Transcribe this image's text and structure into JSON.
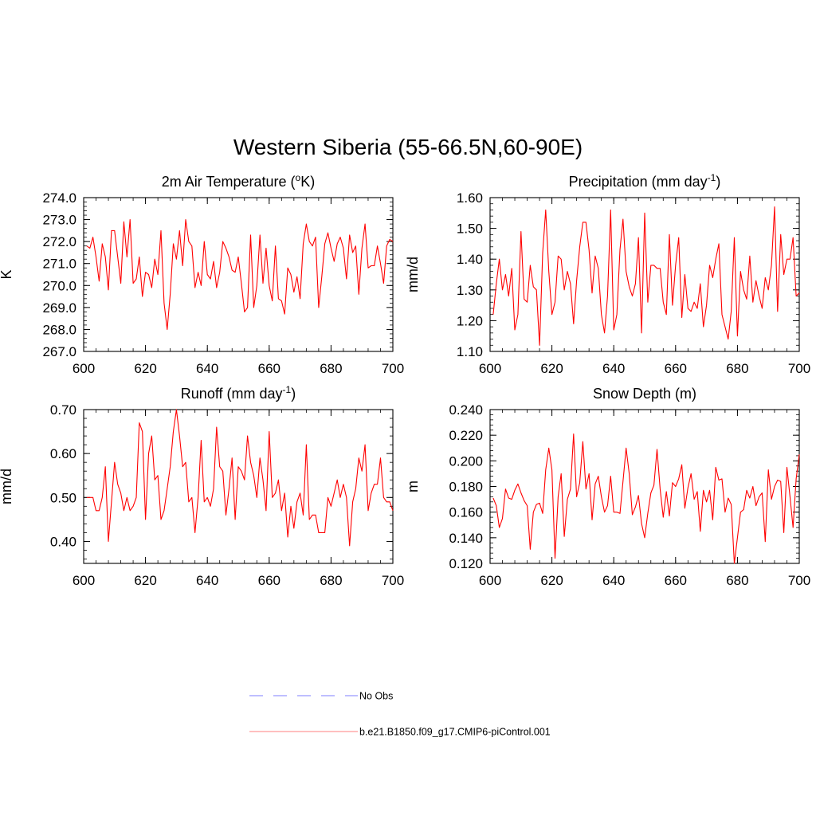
{
  "figure": {
    "title": "Western Siberia (55-66.5N,60-90E)"
  },
  "legend": {
    "placement": "bottom-center",
    "items": [
      {
        "label": "No Obs",
        "color": "#9999ff",
        "style": "dashed"
      },
      {
        "label": "b.e21.B1850.f09_g17.CMIP6-piControl.001",
        "color": "#ff0000",
        "style": "solid"
      }
    ]
  },
  "chart_data": [
    {
      "type": "line",
      "title": "2m Air Temperature (oK)",
      "title_parts": {
        "before": "2m Air Temperature (",
        "sup": "o",
        "after": "K)"
      },
      "ylabel": "K",
      "xlim": [
        600,
        700
      ],
      "ylim": [
        267,
        274
      ],
      "xticks": [
        600,
        620,
        640,
        660,
        680,
        700
      ],
      "yticks": [
        267,
        268,
        269,
        270,
        271,
        272,
        273,
        274
      ],
      "ytick_decimals": 1,
      "color": "#ff0000",
      "x_start": 601,
      "y": [
        271.8,
        271.7,
        272.2,
        271.3,
        270.2,
        271.9,
        271.3,
        269.8,
        272.5,
        272.5,
        271.3,
        270.1,
        272.9,
        271.3,
        273.0,
        270.1,
        270.3,
        271.3,
        269.5,
        270.6,
        270.5,
        269.9,
        271.2,
        270.5,
        272.5,
        269.2,
        268.0,
        269.6,
        271.9,
        271.2,
        272.5,
        270.9,
        273.0,
        272.0,
        271.8,
        269.9,
        270.6,
        270.0,
        272.0,
        270.5,
        270.3,
        271.1,
        269.9,
        270.6,
        272.0,
        271.7,
        271.3,
        270.7,
        270.6,
        271.3,
        270.1,
        268.8,
        269.0,
        272.3,
        269.0,
        270.0,
        272.3,
        270.1,
        271.7,
        270.0,
        269.3,
        271.8,
        269.4,
        269.3,
        268.7,
        270.8,
        270.5,
        269.7,
        270.4,
        269.4,
        271.9,
        272.8,
        272.0,
        271.8,
        272.2,
        269.0,
        270.4,
        271.9,
        272.4,
        271.7,
        271.1,
        271.9,
        272.2,
        271.7,
        270.3,
        272.3,
        271.5,
        271.8,
        269.6,
        271.7,
        272.8,
        270.8,
        270.9,
        270.9,
        271.8,
        271.0,
        270.1,
        271.8,
        272.1,
        272.0
      ]
    },
    {
      "type": "line",
      "title": "Precipitation (mm day-1)",
      "title_parts": {
        "before": "Precipitation (mm day",
        "sup": "-1",
        "after": ")"
      },
      "ylabel": "mm/d",
      "xlim": [
        600,
        700
      ],
      "ylim": [
        1.1,
        1.6
      ],
      "xticks": [
        600,
        620,
        640,
        660,
        680,
        700
      ],
      "yticks": [
        1.1,
        1.2,
        1.3,
        1.4,
        1.5,
        1.6
      ],
      "ytick_decimals": 2,
      "color": "#ff0000",
      "x_start": 601,
      "y": [
        1.22,
        1.32,
        1.4,
        1.3,
        1.35,
        1.28,
        1.37,
        1.17,
        1.22,
        1.49,
        1.27,
        1.26,
        1.38,
        1.31,
        1.3,
        1.12,
        1.42,
        1.56,
        1.36,
        1.22,
        1.26,
        1.41,
        1.4,
        1.3,
        1.36,
        1.32,
        1.19,
        1.33,
        1.44,
        1.52,
        1.52,
        1.43,
        1.29,
        1.41,
        1.37,
        1.22,
        1.16,
        1.28,
        1.56,
        1.17,
        1.22,
        1.43,
        1.53,
        1.36,
        1.31,
        1.28,
        1.32,
        1.47,
        1.16,
        1.55,
        1.26,
        1.38,
        1.38,
        1.37,
        1.37,
        1.26,
        1.22,
        1.48,
        1.25,
        1.38,
        1.47,
        1.21,
        1.35,
        1.24,
        1.23,
        1.26,
        1.24,
        1.32,
        1.18,
        1.25,
        1.38,
        1.34,
        1.4,
        1.45,
        1.22,
        1.18,
        1.14,
        1.23,
        1.47,
        1.15,
        1.36,
        1.3,
        1.27,
        1.41,
        1.26,
        1.33,
        1.28,
        1.24,
        1.34,
        1.3,
        1.38,
        1.57,
        1.23,
        1.48,
        1.35,
        1.4,
        1.4,
        1.47,
        1.28,
        1.29
      ]
    },
    {
      "type": "line",
      "title": "Runoff (mm day-1)",
      "title_parts": {
        "before": "Runoff (mm day",
        "sup": "-1",
        "after": ")"
      },
      "ylabel": "mm/d",
      "xlim": [
        600,
        700
      ],
      "ylim": [
        0.35,
        0.7
      ],
      "xticks": [
        600,
        620,
        640,
        660,
        680,
        700
      ],
      "yticks": [
        0.4,
        0.5,
        0.6,
        0.7
      ],
      "ytick_decimals": 2,
      "color": "#ff0000",
      "x_start": 601,
      "y": [
        0.5,
        0.5,
        0.5,
        0.47,
        0.47,
        0.5,
        0.57,
        0.4,
        0.49,
        0.58,
        0.53,
        0.51,
        0.47,
        0.5,
        0.47,
        0.48,
        0.5,
        0.67,
        0.65,
        0.45,
        0.6,
        0.64,
        0.54,
        0.55,
        0.45,
        0.47,
        0.52,
        0.57,
        0.65,
        0.7,
        0.64,
        0.57,
        0.58,
        0.49,
        0.5,
        0.42,
        0.5,
        0.63,
        0.49,
        0.5,
        0.48,
        0.52,
        0.66,
        0.57,
        0.56,
        0.46,
        0.52,
        0.59,
        0.45,
        0.57,
        0.56,
        0.54,
        0.64,
        0.58,
        0.55,
        0.5,
        0.59,
        0.54,
        0.47,
        0.65,
        0.5,
        0.51,
        0.54,
        0.47,
        0.51,
        0.41,
        0.48,
        0.43,
        0.49,
        0.51,
        0.46,
        0.62,
        0.45,
        0.46,
        0.46,
        0.42,
        0.42,
        0.42,
        0.5,
        0.48,
        0.51,
        0.54,
        0.5,
        0.53,
        0.5,
        0.39,
        0.49,
        0.52,
        0.59,
        0.56,
        0.62,
        0.47,
        0.51,
        0.53,
        0.53,
        0.59,
        0.5,
        0.49,
        0.49,
        0.47
      ]
    },
    {
      "type": "line",
      "title": "Snow Depth (m)",
      "title_parts": {
        "before": "Snow Depth (m)",
        "sup": "",
        "after": ""
      },
      "ylabel": "m",
      "xlim": [
        600,
        700
      ],
      "ylim": [
        0.12,
        0.24
      ],
      "xticks": [
        600,
        620,
        640,
        660,
        680,
        700
      ],
      "yticks": [
        0.12,
        0.14,
        0.16,
        0.18,
        0.2,
        0.22,
        0.24
      ],
      "ytick_decimals": 3,
      "color": "#ff0000",
      "x_start": 601,
      "y": [
        0.171,
        0.165,
        0.148,
        0.155,
        0.178,
        0.171,
        0.17,
        0.177,
        0.182,
        0.175,
        0.169,
        0.165,
        0.131,
        0.16,
        0.166,
        0.167,
        0.159,
        0.193,
        0.21,
        0.193,
        0.124,
        0.172,
        0.19,
        0.141,
        0.17,
        0.178,
        0.221,
        0.172,
        0.183,
        0.215,
        0.178,
        0.19,
        0.154,
        0.182,
        0.188,
        0.172,
        0.16,
        0.165,
        0.188,
        0.16,
        0.16,
        0.159,
        0.184,
        0.21,
        0.19,
        0.158,
        0.164,
        0.173,
        0.151,
        0.14,
        0.159,
        0.175,
        0.181,
        0.209,
        0.178,
        0.156,
        0.176,
        0.157,
        0.183,
        0.18,
        0.186,
        0.197,
        0.163,
        0.179,
        0.19,
        0.17,
        0.176,
        0.145,
        0.177,
        0.168,
        0.177,
        0.154,
        0.195,
        0.185,
        0.186,
        0.16,
        0.171,
        0.166,
        0.12,
        0.14,
        0.16,
        0.162,
        0.177,
        0.171,
        0.18,
        0.165,
        0.172,
        0.175,
        0.137,
        0.193,
        0.17,
        0.18,
        0.185,
        0.184,
        0.144,
        0.195,
        0.172,
        0.148,
        0.186,
        0.205
      ]
    }
  ]
}
